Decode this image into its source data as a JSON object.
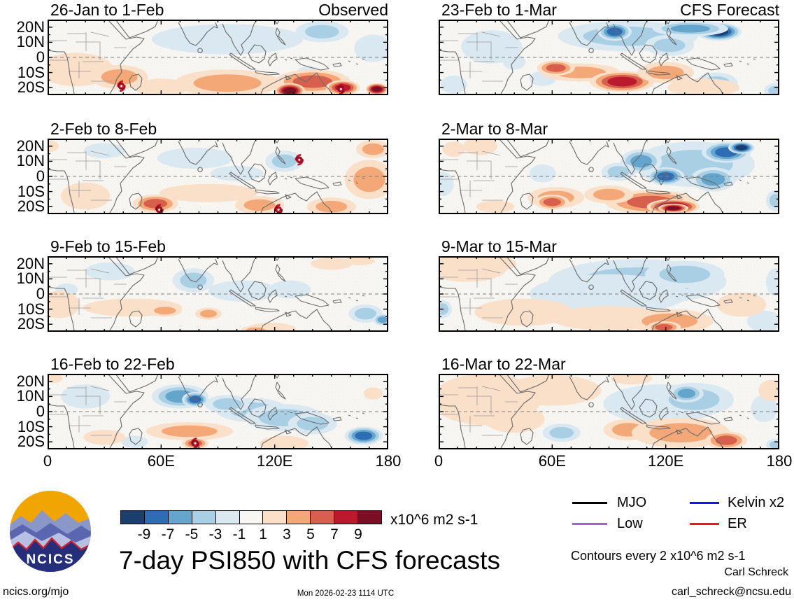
{
  "page": {
    "title": "7-day PSI850 with CFS forecasts",
    "timestamp": "Mon 2026-02-23 1114 UTC",
    "site": "ncics.org/mjo",
    "author": "Carl Schreck",
    "email": "carl_schreck@ncsu.edu",
    "contours_note": "Contours every 2 x10^6 m2 s-1",
    "logo_text": "NCICS"
  },
  "axes": {
    "lon_labels": [
      "0",
      "60E",
      "120E",
      "180"
    ],
    "lat_labels": [
      "20N",
      "10N",
      "0",
      "10S",
      "20S"
    ],
    "lon_range": [
      0,
      180
    ],
    "lat_range": [
      -25,
      25
    ]
  },
  "colorbar": {
    "units": "x10^6 m2 s-1",
    "tick_labels": [
      "-9",
      "-7",
      "-5",
      "-3",
      "-1",
      "1",
      "3",
      "5",
      "7",
      "9"
    ],
    "colors": [
      "#1a3e6e",
      "#2e6db4",
      "#63a5cd",
      "#a9cfe5",
      "#d9e8f1",
      "#f7f6f2",
      "#fadfc9",
      "#f4a878",
      "#d6604d",
      "#bb1a2e",
      "#7a0f24"
    ]
  },
  "legend": {
    "items": [
      {
        "label": "MJO",
        "color": "#000000"
      },
      {
        "label": "Kelvin x2",
        "color": "#1515f0"
      },
      {
        "label": "Low",
        "color": "#a85ae0"
      },
      {
        "label": "ER",
        "color": "#f21818"
      }
    ]
  },
  "chart_data": {
    "type": "heatmap",
    "subtype": "filled_contour_map_grid",
    "variable": "PSI850 anomaly",
    "units": "x10^6 m2 s-1",
    "contour_interval": 2,
    "columns": [
      "Observed",
      "CFS Forecast"
    ],
    "lon_range": [
      0,
      180
    ],
    "lat_range": [
      -25,
      25
    ],
    "panels": [
      {
        "title": "26-Jan to 1-Feb",
        "tag": "Observed",
        "col": 0,
        "row": 0,
        "anomalies": [
          [
            95,
            12,
            -2,
            40,
            10
          ],
          [
            145,
            17,
            -4,
            14,
            7
          ],
          [
            172,
            6,
            -2,
            10,
            9
          ],
          [
            138,
            -9,
            -2,
            6,
            3
          ],
          [
            15,
            -8,
            2,
            20,
            11
          ],
          [
            38,
            -13,
            3,
            15,
            8
          ],
          [
            95,
            -17,
            3,
            28,
            9
          ],
          [
            60,
            -20,
            2,
            14,
            6
          ],
          [
            140,
            -16,
            5,
            20,
            8
          ],
          [
            128,
            -22,
            9,
            8,
            5
          ],
          [
            156,
            -20,
            8,
            9,
            5
          ],
          [
            174,
            -21,
            9,
            6,
            4
          ]
        ],
        "cyclones": [
          [
            39,
            -19
          ],
          [
            155,
            -21
          ]
        ]
      },
      {
        "title": "2-Feb to 8-Feb",
        "tag": "",
        "col": 0,
        "row": 1,
        "anomalies": [
          [
            78,
            12,
            -2,
            20,
            7
          ],
          [
            125,
            10,
            -4,
            10,
            7
          ],
          [
            30,
            17,
            -2,
            11,
            5
          ],
          [
            100,
            2,
            -2,
            14,
            5
          ],
          [
            170,
            -2,
            4,
            13,
            13
          ],
          [
            150,
            -20,
            3,
            13,
            6
          ],
          [
            85,
            -11,
            2,
            26,
            6
          ],
          [
            57,
            -18,
            5,
            12,
            6
          ],
          [
            112,
            -19,
            4,
            13,
            6
          ],
          [
            20,
            -13,
            2,
            13,
            9
          ],
          [
            172,
            18,
            3,
            9,
            6
          ],
          [
            0,
            20,
            2,
            6,
            4
          ]
        ],
        "cyclones": [
          [
            133,
            11
          ],
          [
            59,
            -22
          ],
          [
            122,
            -22
          ]
        ]
      },
      {
        "title": "9-Feb to 15-Feb",
        "tag": "",
        "col": 0,
        "row": 2,
        "anomalies": [
          [
            33,
            15,
            -2,
            13,
            6
          ],
          [
            77,
            9,
            -3,
            11,
            8
          ],
          [
            103,
            2,
            -2,
            18,
            7
          ],
          [
            128,
            3,
            -2,
            11,
            6
          ],
          [
            168,
            -13,
            -4,
            9,
            6
          ],
          [
            177,
            -17,
            -5,
            5,
            4
          ],
          [
            10,
            3,
            -2,
            6,
            4
          ],
          [
            6,
            -7,
            2,
            11,
            9
          ],
          [
            45,
            -9,
            2,
            26,
            6
          ],
          [
            62,
            -11,
            3,
            9,
            4
          ],
          [
            85,
            -13,
            3,
            7,
            4
          ],
          [
            118,
            -23,
            2,
            13,
            4
          ],
          [
            110,
            -24,
            3,
            8,
            3
          ],
          [
            150,
            20,
            2,
            11,
            4
          ],
          [
            165,
            22,
            2,
            8,
            3
          ]
        ],
        "cyclones": []
      },
      {
        "title": "16-Feb to 22-Feb",
        "tag": "",
        "col": 0,
        "row": 3,
        "anomalies": [
          [
            20,
            10,
            -2,
            13,
            8
          ],
          [
            70,
            10,
            -6,
            15,
            8
          ],
          [
            78,
            8,
            -8,
            7,
            5
          ],
          [
            108,
            1,
            -3,
            19,
            8
          ],
          [
            125,
            -4,
            -3,
            21,
            9
          ],
          [
            140,
            -8,
            -3,
            13,
            7
          ],
          [
            167,
            -16,
            -7,
            10,
            6
          ],
          [
            46,
            -20,
            -2,
            7,
            4
          ],
          [
            95,
            5,
            -4,
            12,
            6
          ],
          [
            75,
            -13,
            4,
            23,
            6
          ],
          [
            78,
            -21,
            5,
            7,
            4
          ],
          [
            125,
            -21,
            2,
            13,
            5
          ],
          [
            172,
            12,
            2,
            5,
            4
          ],
          [
            3,
            22,
            2,
            5,
            3
          ],
          [
            30,
            -17,
            2,
            11,
            5
          ]
        ],
        "cyclones": [
          [
            78,
            -21
          ]
        ]
      },
      {
        "title": "23-Feb to 1-Mar",
        "tag": "CFS Forecast",
        "col": 1,
        "row": 0,
        "anomalies": [
          [
            100,
            14,
            -4,
            37,
            10
          ],
          [
            93,
            17,
            -7,
            9,
            6
          ],
          [
            148,
            17,
            -9,
            12,
            6
          ],
          [
            133,
            19,
            -6,
            20,
            5
          ],
          [
            122,
            8,
            -4,
            13,
            7
          ],
          [
            28,
            7,
            -2,
            16,
            11
          ],
          [
            55,
            -14,
            -2,
            7,
            5
          ],
          [
            147,
            -17,
            -4,
            11,
            7
          ],
          [
            178,
            -22,
            -3,
            6,
            5
          ],
          [
            8,
            -18,
            -2,
            7,
            6
          ],
          [
            40,
            -3,
            -2,
            6,
            5
          ],
          [
            75,
            -10,
            3,
            21,
            6
          ],
          [
            62,
            -7,
            5,
            10,
            5
          ],
          [
            97,
            -16,
            7,
            17,
            7
          ],
          [
            120,
            -10,
            4,
            15,
            7
          ],
          [
            140,
            -20,
            2,
            19,
            6
          ]
        ],
        "cyclones": []
      },
      {
        "title": "2-Mar to 8-Mar",
        "tag": "",
        "col": 1,
        "row": 1,
        "anomalies": [
          [
            135,
            8,
            -4,
            32,
            15
          ],
          [
            107,
            10,
            -6,
            11,
            8
          ],
          [
            120,
            0,
            -7,
            10,
            6
          ],
          [
            145,
            -2,
            -5,
            12,
            8
          ],
          [
            152,
            16,
            -8,
            13,
            7
          ],
          [
            160,
            19,
            -10,
            7,
            4
          ],
          [
            55,
            2,
            -2,
            7,
            6
          ],
          [
            2,
            -5,
            -2,
            6,
            8
          ],
          [
            178,
            -16,
            -3,
            5,
            7
          ],
          [
            95,
            3,
            -4,
            9,
            6
          ],
          [
            112,
            -17,
            6,
            24,
            8
          ],
          [
            124,
            -20,
            9,
            14,
            5
          ],
          [
            124,
            -21,
            11,
            8,
            3
          ],
          [
            90,
            -12,
            4,
            13,
            6
          ],
          [
            62,
            -14,
            4,
            15,
            7
          ],
          [
            60,
            -17,
            5,
            9,
            5
          ],
          [
            22,
            20,
            2,
            9,
            6
          ],
          [
            8,
            18,
            2,
            6,
            5
          ],
          [
            30,
            -20,
            2,
            10,
            4
          ]
        ],
        "cyclones": []
      },
      {
        "title": "9-Mar to 15-Mar",
        "tag": "",
        "col": 1,
        "row": 2,
        "anomalies": [
          [
            105,
            8,
            -3,
            47,
            15
          ],
          [
            130,
            13,
            -4,
            21,
            9
          ],
          [
            90,
            0,
            -2,
            42,
            13
          ],
          [
            172,
            -18,
            -2,
            9,
            7
          ],
          [
            2,
            -10,
            -3,
            5,
            6
          ],
          [
            178,
            8,
            -2,
            5,
            9
          ],
          [
            15,
            17,
            2,
            21,
            9
          ],
          [
            30,
            20,
            2,
            11,
            5
          ],
          [
            45,
            -12,
            2,
            26,
            9
          ],
          [
            90,
            -16,
            2,
            31,
            8
          ],
          [
            122,
            -18,
            4,
            23,
            8
          ],
          [
            119,
            -22,
            6,
            9,
            4
          ],
          [
            160,
            -7,
            2,
            13,
            8
          ]
        ],
        "cyclones": []
      },
      {
        "title": "16-Mar to 22-Mar",
        "tag": "",
        "col": 1,
        "row": 3,
        "anomalies": [
          [
            118,
            5,
            -2,
            31,
            13
          ],
          [
            135,
            8,
            -3,
            21,
            11
          ],
          [
            131,
            12,
            -6,
            9,
            6
          ],
          [
            65,
            -14,
            -3,
            10,
            6
          ],
          [
            178,
            -22,
            -3,
            5,
            4
          ],
          [
            172,
            2,
            -2,
            7,
            9
          ],
          [
            25,
            8,
            2,
            29,
            17
          ],
          [
            60,
            14,
            2,
            26,
            10
          ],
          [
            102,
            22,
            2,
            11,
            4
          ],
          [
            40,
            -5,
            2,
            16,
            9
          ],
          [
            100,
            -12,
            3,
            13,
            7
          ],
          [
            128,
            -14,
            4,
            26,
            10
          ],
          [
            152,
            -19,
            6,
            11,
            6
          ],
          [
            176,
            14,
            2,
            7,
            7
          ]
        ],
        "cyclones": []
      }
    ]
  }
}
